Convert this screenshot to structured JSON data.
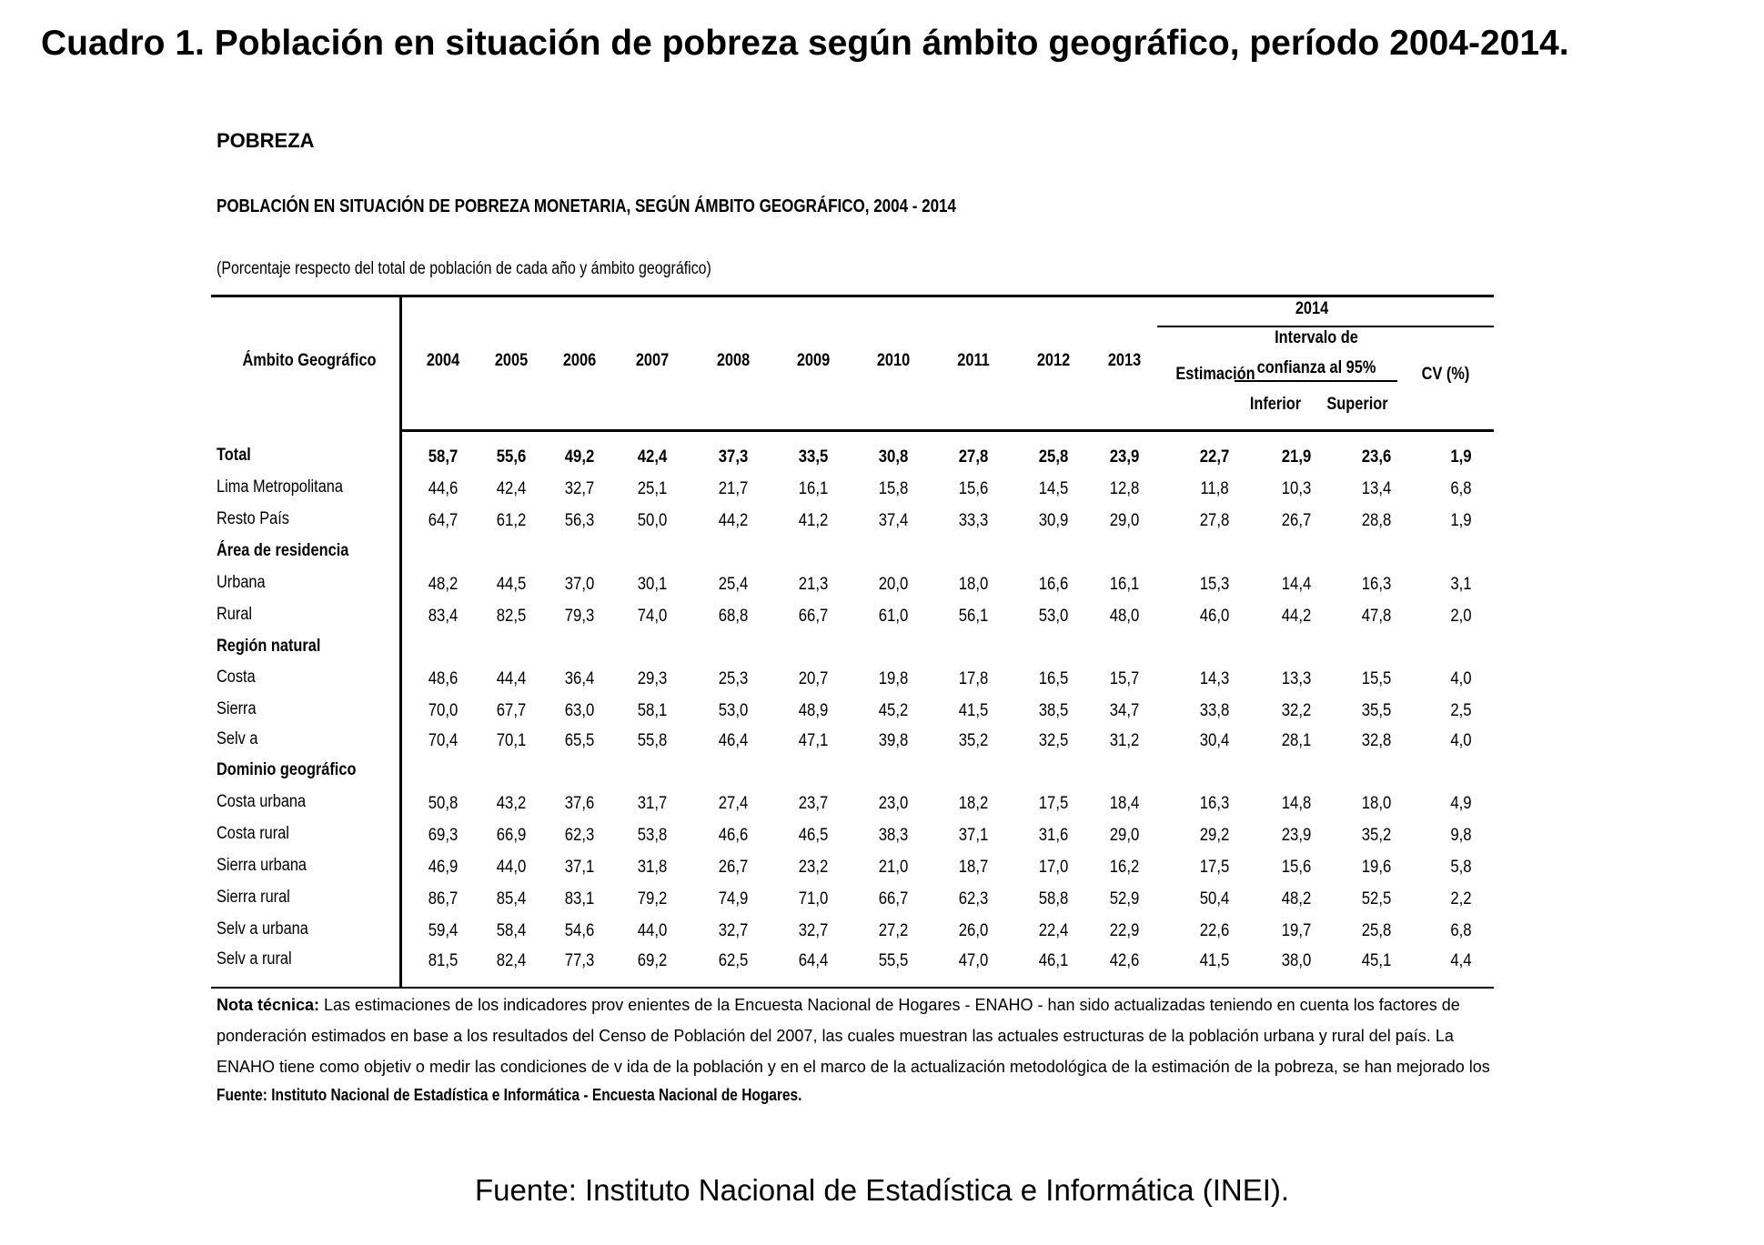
{
  "main_title": "Cuadro 1. Población en situación de pobreza según ámbito geográfico, período 2004-2014.",
  "section_title": "POBREZA",
  "table_heading": "POBLACIÓN EN SITUACIÓN DE POBREZA MONETARIA, SEGÚN ÁMBITO GEOGRÁFICO, 2004 - 2014",
  "units_note": "(Porcentaje respecto del total de población de cada año y  ámbito geográfico)",
  "header": {
    "label_col": "Ámbito Geográfico",
    "years": [
      "2004",
      "2005",
      "2006",
      "2007",
      "2008",
      "2009",
      "2010",
      "2011",
      "2012",
      "2013"
    ],
    "group_2014": "2014",
    "estimacion": "Estimación",
    "intervalo_line1": "Intervalo de",
    "intervalo_line2": "confianza al 95%",
    "inferior": "Inferior",
    "superior": "Superior",
    "cv": "CV (%)"
  },
  "rows": [
    {
      "label": "Total",
      "bold": true,
      "values": [
        "58,7",
        "55,6",
        "49,2",
        "42,4",
        "37,3",
        "33,5",
        "30,8",
        "27,8",
        "25,8",
        "23,9",
        "22,7",
        "21,9",
        "23,6",
        "1,9"
      ]
    },
    {
      "label": "Lima Metropolitana",
      "values": [
        "44,6",
        "42,4",
        "32,7",
        "25,1",
        "21,7",
        "16,1",
        "15,8",
        "15,6",
        "14,5",
        "12,8",
        "11,8",
        "10,3",
        "13,4",
        "6,8"
      ]
    },
    {
      "label": "Resto País",
      "values": [
        "64,7",
        "61,2",
        "56,3",
        "50,0",
        "44,2",
        "41,2",
        "37,4",
        "33,3",
        "30,9",
        "29,0",
        "27,8",
        "26,7",
        "28,8",
        "1,9"
      ]
    },
    {
      "label": "Área de residencia",
      "section": true,
      "values": []
    },
    {
      "label": "Urbana",
      "values": [
        "48,2",
        "44,5",
        "37,0",
        "30,1",
        "25,4",
        "21,3",
        "20,0",
        "18,0",
        "16,6",
        "16,1",
        "15,3",
        "14,4",
        "16,3",
        "3,1"
      ]
    },
    {
      "label": "Rural",
      "values": [
        "83,4",
        "82,5",
        "79,3",
        "74,0",
        "68,8",
        "66,7",
        "61,0",
        "56,1",
        "53,0",
        "48,0",
        "46,0",
        "44,2",
        "47,8",
        "2,0"
      ]
    },
    {
      "label": "Región natural",
      "section": true,
      "values": []
    },
    {
      "label": "Costa",
      "values": [
        "48,6",
        "44,4",
        "36,4",
        "29,3",
        "25,3",
        "20,7",
        "19,8",
        "17,8",
        "16,5",
        "15,7",
        "14,3",
        "13,3",
        "15,5",
        "4,0"
      ]
    },
    {
      "label": "Sierra",
      "values": [
        "70,0",
        "67,7",
        "63,0",
        "58,1",
        "53,0",
        "48,9",
        "45,2",
        "41,5",
        "38,5",
        "34,7",
        "33,8",
        "32,2",
        "35,5",
        "2,5"
      ]
    },
    {
      "label": "Selv a",
      "values": [
        "70,4",
        "70,1",
        "65,5",
        "55,8",
        "46,4",
        "47,1",
        "39,8",
        "35,2",
        "32,5",
        "31,2",
        "30,4",
        "28,1",
        "32,8",
        "4,0"
      ]
    },
    {
      "label": "Dominio geográfico",
      "section": true,
      "values": []
    },
    {
      "label": "Costa urbana",
      "values": [
        "50,8",
        "43,2",
        "37,6",
        "31,7",
        "27,4",
        "23,7",
        "23,0",
        "18,2",
        "17,5",
        "18,4",
        "16,3",
        "14,8",
        "18,0",
        "4,9"
      ]
    },
    {
      "label": "Costa rural",
      "values": [
        "69,3",
        "66,9",
        "62,3",
        "53,8",
        "46,6",
        "46,5",
        "38,3",
        "37,1",
        "31,6",
        "29,0",
        "29,2",
        "23,9",
        "35,2",
        "9,8"
      ]
    },
    {
      "label": "Sierra urbana",
      "values": [
        "46,9",
        "44,0",
        "37,1",
        "31,8",
        "26,7",
        "23,2",
        "21,0",
        "18,7",
        "17,0",
        "16,2",
        "17,5",
        "15,6",
        "19,6",
        "5,8"
      ]
    },
    {
      "label": "Sierra rural",
      "values": [
        "86,7",
        "85,4",
        "83,1",
        "79,2",
        "74,9",
        "71,0",
        "66,7",
        "62,3",
        "58,8",
        "52,9",
        "50,4",
        "48,2",
        "52,5",
        "2,2"
      ]
    },
    {
      "label": "Selv a urbana",
      "values": [
        "59,4",
        "58,4",
        "54,6",
        "44,0",
        "32,7",
        "32,7",
        "27,2",
        "26,0",
        "22,4",
        "22,9",
        "22,6",
        "19,7",
        "25,8",
        "6,8"
      ]
    },
    {
      "label": "Selv a rural",
      "values": [
        "81,5",
        "82,4",
        "77,3",
        "69,2",
        "62,5",
        "64,4",
        "55,5",
        "47,0",
        "46,1",
        "42,6",
        "41,5",
        "38,0",
        "45,1",
        "4,4"
      ]
    }
  ],
  "note": {
    "prefix": "Nota técnica:",
    "line1": " Las estimaciones de los indicadores prov enientes de la Encuesta Nacional de Hogares - ENAHO - han sido actualizadas teniendo en cuenta los factores de",
    "line2": "ponderación estimados en base a los resultados del Censo de Población del 2007, las cuales muestran las actuales estructuras de la población urbana y  rural del país. La",
    "line3": "ENAHO tiene como objetiv o medir las condiciones de v ida de la población y  en el marco de la actualización metodológica de la estimación de la pobreza, se han mejorado los"
  },
  "source_inner": "Fuente: Instituto Nacional de Estadística e Informática - Encuesta Nacional de Hogares.",
  "source_outer": "Fuente: Instituto Nacional de Estadística e Informática (INEI)."
}
